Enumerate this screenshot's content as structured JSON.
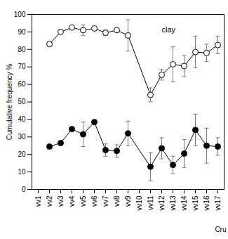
{
  "chart_data": {
    "type": "line",
    "y_label": "Cumulative frequency %",
    "x_label": "Cru",
    "categories": [
      "vv1",
      "vv2",
      "vv3",
      "vv4",
      "vv5",
      "vv6",
      "vv7",
      "vv8",
      "vv9",
      "vv10",
      "vv11",
      "vv12",
      "vv13",
      "vv14",
      "vv15",
      "vv16",
      "vv17"
    ],
    "series": [
      {
        "color": "#000000",
        "marker": "open_circle",
        "line_style": "solid",
        "values": [
          null,
          83,
          90,
          92.5,
          91,
          92,
          89.5,
          91,
          88,
          null,
          54,
          65.5,
          71.5,
          70.5,
          78.5,
          78,
          82.5
        ],
        "errors": [
          null,
          null,
          null,
          null,
          3,
          null,
          1.5,
          null,
          9,
          null,
          4,
          3,
          10,
          6,
          9,
          5,
          5
        ]
      },
      {
        "color": "#000000",
        "marker": "circle",
        "line_style": "solid",
        "values": [
          null,
          24.5,
          26.5,
          34.5,
          31.5,
          38.5,
          22.5,
          22,
          32,
          null,
          13,
          23.5,
          14,
          20.5,
          34,
          25,
          24.5
        ],
        "errors": [
          null,
          null,
          null,
          null,
          7,
          null,
          3.5,
          3.5,
          7,
          null,
          8,
          6,
          5,
          8,
          9,
          10,
          5
        ]
      }
    ],
    "annotations": [
      {
        "text": "clay",
        "x": "vv12",
        "y": 91
      }
    ],
    "ylim": [
      0,
      100
    ],
    "yticks": [
      0,
      10,
      20,
      30,
      40,
      50,
      60,
      70,
      80,
      90,
      100
    ],
    "grid": false
  }
}
